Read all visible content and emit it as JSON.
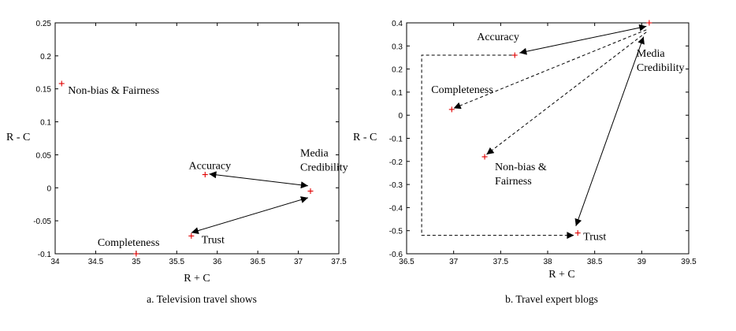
{
  "chart_data": [
    {
      "type": "scatter",
      "caption": "a. Television travel shows",
      "xlabel": "R + C",
      "ylabel": "R - C",
      "xlim": [
        34,
        37.5
      ],
      "ylim": [
        -0.1,
        0.25
      ],
      "xticks": [
        "34",
        "34.5",
        "35",
        "35.5",
        "36",
        "36.5",
        "37",
        "37.5"
      ],
      "yticks": [
        "-0.1",
        "-0.05",
        "0",
        "0.05",
        "0.1",
        "0.15",
        "0.2",
        "0.25"
      ],
      "points": [
        {
          "label": "Non-bias & Fairness",
          "x": 34.08,
          "y": 0.158
        },
        {
          "label": "Accuracy",
          "x": 35.85,
          "y": 0.02
        },
        {
          "label": "Media Credibility",
          "x": 37.15,
          "y": -0.005
        },
        {
          "label": "Completeness",
          "x": 35.0,
          "y": -0.1
        },
        {
          "label": "Trust",
          "x": 35.68,
          "y": -0.073
        }
      ],
      "arrows": [
        {
          "from": [
            37.12,
            0.003
          ],
          "to": [
            35.9,
            0.021
          ],
          "style": "solid",
          "double_headed": true
        },
        {
          "from": [
            37.12,
            -0.015
          ],
          "to": [
            35.68,
            -0.068
          ],
          "style": "solid",
          "double_headed": true
        }
      ]
    },
    {
      "type": "scatter",
      "caption": "b. Travel expert blogs",
      "xlabel": "R + C",
      "ylabel": "R - C",
      "xlim": [
        36.5,
        39.5
      ],
      "ylim": [
        -0.6,
        0.4
      ],
      "xticks": [
        "36.5",
        "37",
        "37.5",
        "38",
        "38.5",
        "39",
        "39.5"
      ],
      "yticks": [
        "-0.6",
        "-0.5",
        "-0.4",
        "-0.3",
        "-0.2",
        "-0.1",
        "0",
        "0.1",
        "0.2",
        "0.3",
        "0.4"
      ],
      "points": [
        {
          "label": "Accuracy",
          "x": 37.65,
          "y": 0.26
        },
        {
          "label": "Media Credibility",
          "x": 39.08,
          "y": 0.4
        },
        {
          "label": "Completeness",
          "x": 36.98,
          "y": 0.025
        },
        {
          "label": "Non-bias & Fairness",
          "x": 37.33,
          "y": -0.18
        },
        {
          "label": "Trust",
          "x": 38.32,
          "y": -0.51
        }
      ],
      "arrows": [
        {
          "from": [
            39.05,
            0.385
          ],
          "to": [
            37.7,
            0.27
          ],
          "style": "solid",
          "double_headed": true
        },
        {
          "from": [
            39.05,
            0.37
          ],
          "to": [
            37.0,
            0.03
          ],
          "style": "dashed",
          "double_headed": false
        },
        {
          "from": [
            39.05,
            0.36
          ],
          "to": [
            37.35,
            -0.17
          ],
          "style": "dashed",
          "double_headed": false
        },
        {
          "from": [
            39.02,
            0.34
          ],
          "to": [
            38.3,
            -0.48
          ],
          "style": "solid",
          "double_headed": true
        },
        {
          "path": [
            [
              37.62,
              0.26
            ],
            [
              36.66,
              0.26
            ],
            [
              36.66,
              -0.52
            ],
            [
              38.28,
              -0.52
            ]
          ],
          "style": "dashed",
          "double_headed": false
        }
      ]
    }
  ]
}
